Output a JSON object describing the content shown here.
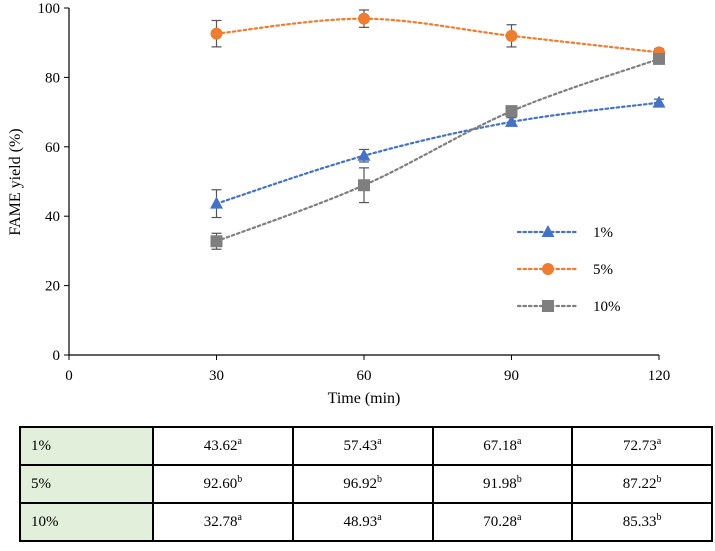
{
  "chart_data": {
    "type": "line",
    "title": "",
    "xlabel": "Time (min)",
    "ylabel": "FAME yield (%)",
    "xlim": [
      0,
      120
    ],
    "ylim": [
      0,
      100
    ],
    "xticks": [
      0,
      30,
      60,
      90,
      120
    ],
    "yticks": [
      0,
      20,
      40,
      60,
      80,
      100
    ],
    "grid": false,
    "legend_position": "right",
    "x": [
      30,
      60,
      90,
      120
    ],
    "series": [
      {
        "name": "1%",
        "marker": "triangle",
        "color": "#4472c4",
        "values": [
          43.62,
          57.43,
          67.18,
          72.73
        ],
        "errors": [
          4.0,
          1.8,
          1.2,
          1.0
        ]
      },
      {
        "name": "5%",
        "marker": "circle",
        "color": "#ed7d31",
        "values": [
          92.6,
          96.92,
          91.98,
          87.22
        ],
        "errors": [
          3.8,
          2.5,
          3.2,
          1.0
        ]
      },
      {
        "name": "10%",
        "marker": "square",
        "color": "#7f7f7f",
        "values": [
          32.78,
          48.93,
          70.28,
          85.33
        ],
        "errors": [
          2.3,
          5.0,
          1.2,
          1.0
        ]
      }
    ]
  },
  "table": {
    "rows": [
      {
        "label": "1%",
        "cells": [
          {
            "value": "43.62",
            "sup": "a"
          },
          {
            "value": "57.43",
            "sup": "a"
          },
          {
            "value": "67.18",
            "sup": "a"
          },
          {
            "value": "72.73",
            "sup": "a"
          }
        ]
      },
      {
        "label": "5%",
        "cells": [
          {
            "value": "92.60",
            "sup": "b"
          },
          {
            "value": "96.92",
            "sup": "b"
          },
          {
            "value": "91.98",
            "sup": "b"
          },
          {
            "value": "87.22",
            "sup": "b"
          }
        ]
      },
      {
        "label": "10%",
        "cells": [
          {
            "value": "32.78",
            "sup": "a"
          },
          {
            "value": "48.93",
            "sup": "a"
          },
          {
            "value": "70.28",
            "sup": "a"
          },
          {
            "value": "85.33",
            "sup": "b"
          }
        ]
      }
    ]
  }
}
